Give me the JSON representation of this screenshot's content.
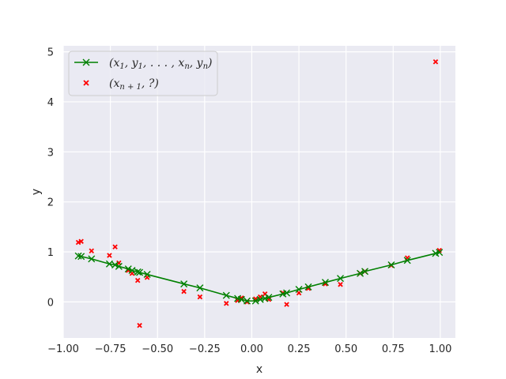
{
  "chart_data": {
    "type": "scatter",
    "title": "",
    "xlabel": "x",
    "ylabel": "y",
    "xlim": [
      -1.0,
      1.08
    ],
    "ylim": [
      -0.72,
      5.12
    ],
    "xticks": [
      -1.0,
      -0.75,
      -0.5,
      -0.25,
      0.0,
      0.25,
      0.5,
      0.75,
      1.0
    ],
    "xtick_labels": [
      "−1.00",
      "−0.75",
      "−0.50",
      "−0.25",
      "0.00",
      "0.25",
      "0.50",
      "0.75",
      "1.00"
    ],
    "yticks": [
      0,
      1,
      2,
      3,
      4,
      5
    ],
    "ytick_labels": [
      "0",
      "1",
      "2",
      "3",
      "4",
      "5"
    ],
    "grid": true,
    "legend_position": "top-left",
    "colors": {
      "plot_background": "#eaeaf2",
      "grid": "#ffffff",
      "line": "#008000",
      "query": "#ff0000"
    },
    "series": [
      {
        "name": "(x1, y1, ..., xn, yn)",
        "style": "line-x-markers",
        "x": [
          -0.92,
          -0.905,
          -0.85,
          -0.755,
          -0.725,
          -0.705,
          -0.655,
          -0.635,
          -0.605,
          -0.595,
          -0.555,
          -0.36,
          -0.275,
          -0.135,
          -0.075,
          -0.055,
          -0.025,
          0.02,
          0.045,
          0.07,
          0.09,
          0.165,
          0.185,
          0.25,
          0.3,
          0.39,
          0.47,
          0.575,
          0.6,
          0.74,
          0.825,
          0.975,
          0.995
        ],
        "y": [
          0.92,
          0.91,
          0.86,
          0.76,
          0.74,
          0.71,
          0.66,
          0.63,
          0.6,
          0.59,
          0.55,
          0.36,
          0.28,
          0.13,
          0.07,
          0.05,
          0.02,
          0.02,
          0.05,
          0.07,
          0.09,
          0.16,
          0.18,
          0.25,
          0.3,
          0.39,
          0.47,
          0.57,
          0.61,
          0.74,
          0.83,
          0.97,
          0.99
        ]
      },
      {
        "name": "(xn+1, ?)",
        "style": "scatter-x",
        "x": [
          -0.92,
          -0.905,
          -0.85,
          -0.755,
          -0.725,
          -0.705,
          -0.655,
          -0.635,
          -0.605,
          -0.595,
          -0.555,
          -0.36,
          -0.275,
          -0.135,
          -0.075,
          -0.055,
          -0.025,
          0.02,
          0.045,
          0.07,
          0.09,
          0.165,
          0.185,
          0.25,
          0.3,
          0.39,
          0.47,
          0.575,
          0.6,
          0.74,
          0.825,
          0.975,
          0.995
        ],
        "y": [
          1.19,
          1.21,
          1.02,
          0.93,
          1.1,
          0.78,
          0.63,
          0.57,
          0.43,
          -0.47,
          0.49,
          0.21,
          0.1,
          -0.03,
          0.03,
          0.08,
          0.0,
          0.06,
          0.1,
          0.16,
          0.05,
          0.18,
          -0.05,
          0.18,
          0.27,
          0.36,
          0.35,
          0.57,
          0.61,
          0.73,
          0.88,
          4.8,
          1.03
        ]
      }
    ]
  }
}
